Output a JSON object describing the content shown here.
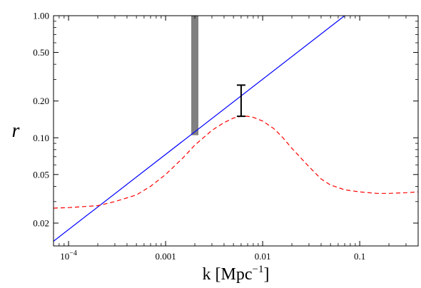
{
  "chart_data": {
    "type": "line",
    "title": "",
    "xlabel": "k [Mpc",
    "xlabel_sup": "−1",
    "xlabel_close": "]",
    "ylabel": "r",
    "xscale": "log",
    "yscale": "log",
    "xlim": [
      7e-05,
      0.4
    ],
    "ylim": [
      0.013,
      1.0
    ],
    "grid": false,
    "x_ticks": [
      {
        "value": 0.0001,
        "label": "10",
        "sup": "−4"
      },
      {
        "value": 0.001,
        "label": "0.001"
      },
      {
        "value": 0.01,
        "label": "0.01"
      },
      {
        "value": 0.1,
        "label": "0.1"
      }
    ],
    "y_ticks": [
      {
        "value": 0.02,
        "label": "0.02"
      },
      {
        "value": 0.05,
        "label": "0.05"
      },
      {
        "value": 0.1,
        "label": "0.10"
      },
      {
        "value": 0.2,
        "label": "0.20"
      },
      {
        "value": 0.5,
        "label": "0.50"
      },
      {
        "value": 1.0,
        "label": "1.00"
      }
    ],
    "series": [
      {
        "style": "solid",
        "color": "#0000ff",
        "x": [
          7e-05,
          0.07
        ],
        "y": [
          0.0142,
          1.0
        ]
      },
      {
        "style": "dashed",
        "color": "#ff0000",
        "x": [
          7e-05,
          0.0001,
          0.0002,
          0.0003,
          0.0005,
          0.0007,
          0.001,
          0.0015,
          0.002,
          0.003,
          0.004,
          0.005,
          0.006,
          0.007,
          0.008,
          0.01,
          0.013,
          0.016,
          0.02,
          0.03,
          0.04,
          0.05,
          0.07,
          0.1,
          0.15,
          0.2,
          0.3,
          0.4
        ],
        "y": [
          0.0265,
          0.0268,
          0.0278,
          0.03,
          0.034,
          0.04,
          0.05,
          0.068,
          0.087,
          0.115,
          0.133,
          0.145,
          0.15,
          0.15,
          0.147,
          0.137,
          0.119,
          0.101,
          0.082,
          0.058,
          0.046,
          0.041,
          0.0375,
          0.036,
          0.035,
          0.035,
          0.0355,
          0.036
        ]
      }
    ],
    "bands": [
      {
        "color": "#808080",
        "x": 0.002,
        "y_low": 0.105,
        "y_high": 1.0
      }
    ],
    "error_bars": [
      {
        "color": "#000000",
        "x": 0.006,
        "y": 0.2,
        "y_low": 0.15,
        "y_high": 0.27
      }
    ]
  }
}
